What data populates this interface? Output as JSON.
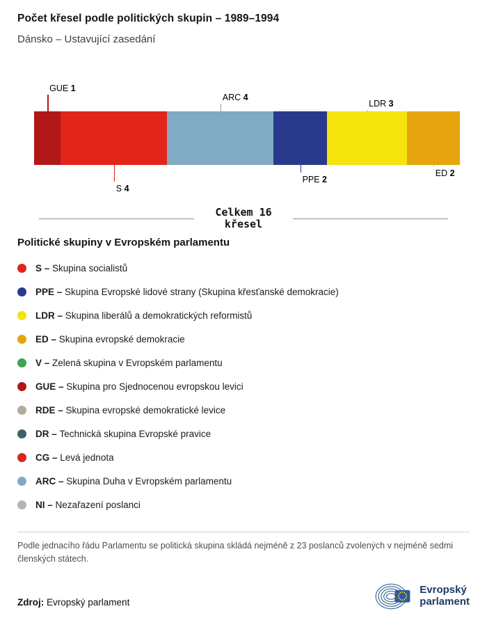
{
  "header": {
    "title": "Počet křesel podle politických skupin – 1989–1994",
    "subtitle": "Dánsko – Ustavující zasedání"
  },
  "chart_data": {
    "type": "bar",
    "variant": "horizontal-stacked-seat-bar",
    "title": "Počet křesel podle politických skupin – 1989–1994",
    "subtitle": "Dánsko – Ustavující zasedání",
    "total": 16,
    "total_line1": "Celkem 16",
    "total_line2": "křesel",
    "categories": [
      "GUE",
      "S",
      "ARC",
      "PPE",
      "LDR",
      "ED"
    ],
    "values": [
      1,
      4,
      4,
      2,
      3,
      2
    ],
    "segments": [
      {
        "code": "GUE",
        "seats": 1,
        "color": "#b01818",
        "side": "top",
        "tier": 3
      },
      {
        "code": "S",
        "seats": 4,
        "color": "#e2241b",
        "side": "bottom",
        "tier": 3
      },
      {
        "code": "ARC",
        "seats": 4,
        "color": "#80abc3",
        "side": "top",
        "tier": 2
      },
      {
        "code": "PPE",
        "seats": 2,
        "color": "#293a8c",
        "side": "bottom",
        "tier": 2
      },
      {
        "code": "LDR",
        "seats": 3,
        "color": "#f4e40c",
        "side": "top",
        "tier": 1
      },
      {
        "code": "ED",
        "seats": 2,
        "color": "#e6a50f",
        "side": "bottom",
        "tier": 1
      }
    ]
  },
  "legend": {
    "heading": "Politické skupiny v Evropském parlamentu",
    "separator": "–",
    "items": [
      {
        "code": "S",
        "name": "Skupina socialistů",
        "color": "#e2241b"
      },
      {
        "code": "PPE",
        "name": "Skupina Evropské lidové strany (Skupina křesťanské demokracie)",
        "color": "#293a8c"
      },
      {
        "code": "LDR",
        "name": "Skupina liberálů a demokratických reformistů",
        "color": "#f4e40c"
      },
      {
        "code": "ED",
        "name": "Skupina evropské demokracie",
        "color": "#e6a50f"
      },
      {
        "code": "V",
        "name": "Zelená skupina v Evropském parlamentu",
        "color": "#3fa450"
      },
      {
        "code": "GUE",
        "name": "Skupina pro Sjednocenou evropskou levici",
        "color": "#b01818"
      },
      {
        "code": "RDE",
        "name": "Skupina evropské demokratické levice",
        "color": "#b3ac9e"
      },
      {
        "code": "DR",
        "name": "Technická skupina Evropské pravice",
        "color": "#3f5f6b"
      },
      {
        "code": "CG",
        "name": "Levá jednota",
        "color": "#d6281e"
      },
      {
        "code": "ARC",
        "name": "Skupina Duha v Evropském parlamentu",
        "color": "#80abc3"
      },
      {
        "code": "NI",
        "name": "Nezařazení poslanci",
        "color": "#b4b4b4"
      }
    ]
  },
  "footnote": "Podle jednacího řádu Parlamentu se politická skupina skládá nejméně z 23 poslanců zvolených v nejméně sedmi členských státech.",
  "source": {
    "label": "Zdroj:",
    "value": "Evropský parlament"
  },
  "logo": {
    "line1": "Evropský",
    "line2": "parlament"
  }
}
